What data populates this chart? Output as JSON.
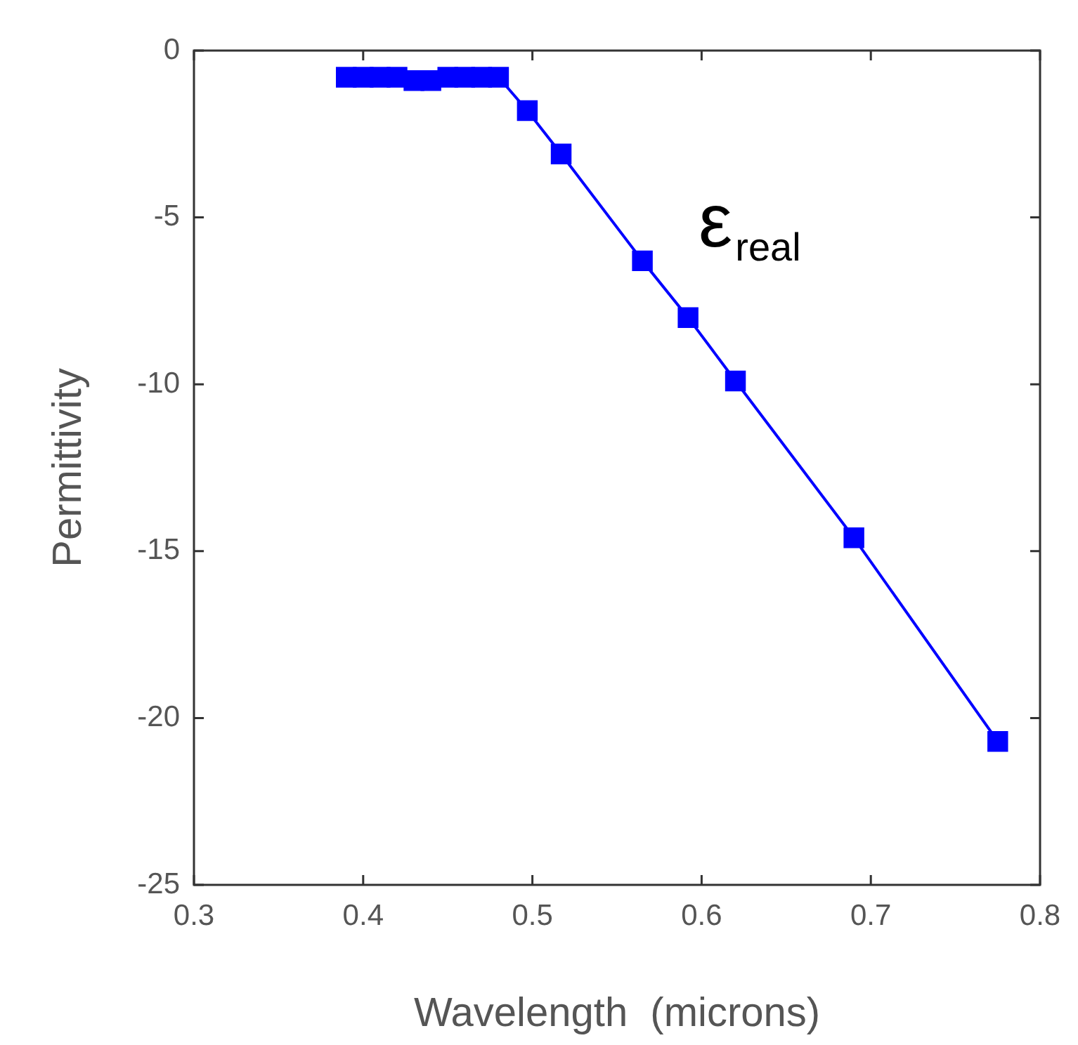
{
  "chart_data": {
    "type": "line",
    "xlabel": "Wavelength  (microns)",
    "ylabel": "Permittivity",
    "x": [
      0.39,
      0.4,
      0.41,
      0.42,
      0.43,
      0.44,
      0.45,
      0.46,
      0.47,
      0.48,
      0.497,
      0.517,
      0.565,
      0.592,
      0.62,
      0.69,
      0.775
    ],
    "series": [
      {
        "name": "ε$_{real}$",
        "color": "#0000ff",
        "values": [
          -0.8,
          -0.8,
          -0.8,
          -0.8,
          -0.9,
          -0.9,
          -0.8,
          -0.8,
          -0.8,
          -0.8,
          -1.8,
          -3.1,
          -6.3,
          -8.0,
          -9.9,
          -14.6,
          -20.7
        ]
      }
    ],
    "xlim": [
      0.3,
      0.8
    ],
    "xticks": [
      0.3,
      0.4,
      0.5,
      0.6,
      0.7,
      0.8
    ],
    "ylim": [
      -25,
      0
    ],
    "yticks": [
      -25,
      -20,
      -15,
      -10,
      -5,
      0
    ],
    "grid": false,
    "legend": false,
    "marker": "square",
    "line_style": "solid"
  }
}
